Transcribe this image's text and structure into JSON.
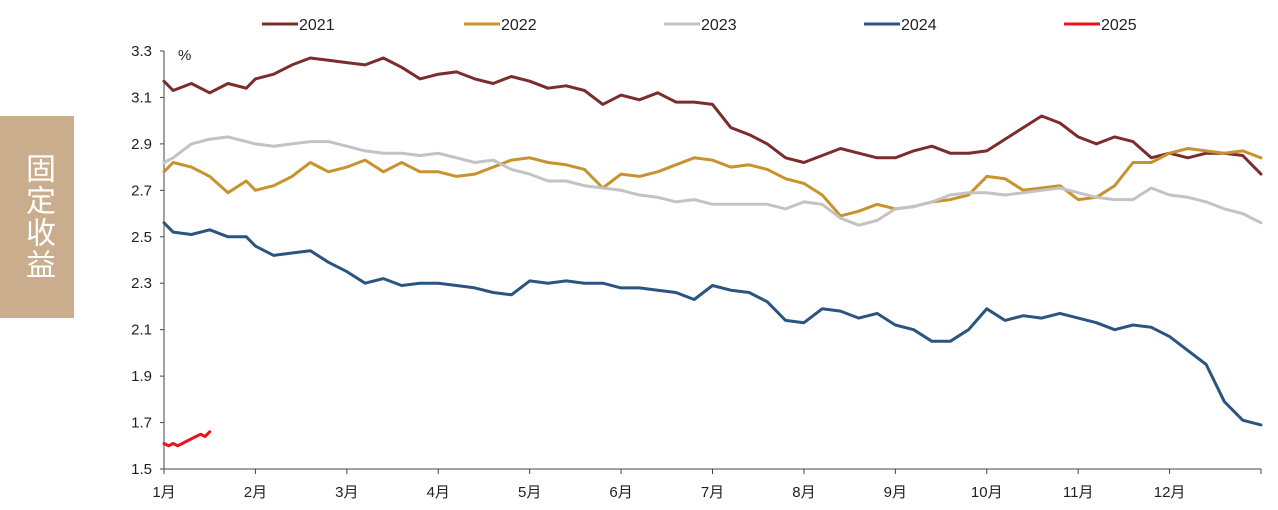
{
  "section_tab": {
    "label": "固定收益"
  },
  "chart_data": {
    "type": "line",
    "unit_label": "%",
    "x_ticks": [
      "1月",
      "2月",
      "3月",
      "4月",
      "5月",
      "6月",
      "7月",
      "8月",
      "9月",
      "10月",
      "11月",
      "12月"
    ],
    "y_ticks": [
      "3.3",
      "3.1",
      "2.9",
      "2.7",
      "2.5",
      "2.3",
      "2.1",
      "1.9",
      "1.7",
      "1.5"
    ],
    "ylim": [
      1.5,
      3.3
    ],
    "xlim": [
      1,
      13
    ],
    "legend_position": "top",
    "series": [
      {
        "name": "2021",
        "color": "#7b2c2c",
        "x": [
          1.0,
          1.1,
          1.3,
          1.5,
          1.7,
          1.9,
          2.0,
          2.2,
          2.4,
          2.6,
          2.8,
          3.0,
          3.2,
          3.4,
          3.6,
          3.8,
          4.0,
          4.2,
          4.4,
          4.6,
          4.8,
          5.0,
          5.2,
          5.4,
          5.6,
          5.8,
          6.0,
          6.2,
          6.4,
          6.6,
          6.8,
          7.0,
          7.2,
          7.4,
          7.6,
          7.8,
          8.0,
          8.2,
          8.4,
          8.6,
          8.8,
          9.0,
          9.2,
          9.4,
          9.6,
          9.8,
          10.0,
          10.2,
          10.4,
          10.6,
          10.8,
          11.0,
          11.2,
          11.4,
          11.6,
          11.8,
          12.0,
          12.2,
          12.4,
          12.6,
          12.8,
          13.0
        ],
        "y": [
          3.17,
          3.13,
          3.16,
          3.12,
          3.16,
          3.14,
          3.18,
          3.2,
          3.24,
          3.27,
          3.26,
          3.25,
          3.24,
          3.27,
          3.23,
          3.18,
          3.2,
          3.21,
          3.18,
          3.16,
          3.19,
          3.17,
          3.14,
          3.15,
          3.13,
          3.07,
          3.11,
          3.09,
          3.12,
          3.08,
          3.08,
          3.07,
          2.97,
          2.94,
          2.9,
          2.84,
          2.82,
          2.85,
          2.88,
          2.86,
          2.84,
          2.84,
          2.87,
          2.89,
          2.86,
          2.86,
          2.87,
          2.92,
          2.97,
          3.02,
          2.99,
          2.93,
          2.9,
          2.93,
          2.91,
          2.84,
          2.86,
          2.84,
          2.86,
          2.86,
          2.85,
          2.77
        ]
      },
      {
        "name": "2022",
        "color": "#c8922e",
        "x": [
          1.0,
          1.1,
          1.3,
          1.5,
          1.7,
          1.9,
          2.0,
          2.2,
          2.4,
          2.6,
          2.8,
          3.0,
          3.2,
          3.4,
          3.6,
          3.8,
          4.0,
          4.2,
          4.4,
          4.6,
          4.8,
          5.0,
          5.2,
          5.4,
          5.6,
          5.8,
          6.0,
          6.2,
          6.4,
          6.6,
          6.8,
          7.0,
          7.2,
          7.4,
          7.6,
          7.8,
          8.0,
          8.2,
          8.4,
          8.6,
          8.8,
          9.0,
          9.2,
          9.4,
          9.6,
          9.8,
          10.0,
          10.2,
          10.4,
          10.6,
          10.8,
          11.0,
          11.2,
          11.4,
          11.6,
          11.8,
          12.0,
          12.2,
          12.4,
          12.6,
          12.8,
          13.0
        ],
        "y": [
          2.78,
          2.82,
          2.8,
          2.76,
          2.69,
          2.74,
          2.7,
          2.72,
          2.76,
          2.82,
          2.78,
          2.8,
          2.83,
          2.78,
          2.82,
          2.78,
          2.78,
          2.76,
          2.77,
          2.8,
          2.83,
          2.84,
          2.82,
          2.81,
          2.79,
          2.71,
          2.77,
          2.76,
          2.78,
          2.81,
          2.84,
          2.83,
          2.8,
          2.81,
          2.79,
          2.75,
          2.73,
          2.68,
          2.59,
          2.61,
          2.64,
          2.62,
          2.63,
          2.65,
          2.66,
          2.68,
          2.76,
          2.75,
          2.7,
          2.71,
          2.72,
          2.66,
          2.67,
          2.72,
          2.82,
          2.82,
          2.86,
          2.88,
          2.87,
          2.86,
          2.87,
          2.84
        ]
      },
      {
        "name": "2023",
        "color": "#c3c3c3",
        "x": [
          1.0,
          1.1,
          1.3,
          1.5,
          1.7,
          1.9,
          2.0,
          2.2,
          2.4,
          2.6,
          2.8,
          3.0,
          3.2,
          3.4,
          3.6,
          3.8,
          4.0,
          4.2,
          4.4,
          4.6,
          4.8,
          5.0,
          5.2,
          5.4,
          5.6,
          5.8,
          6.0,
          6.2,
          6.4,
          6.6,
          6.8,
          7.0,
          7.2,
          7.4,
          7.6,
          7.8,
          8.0,
          8.2,
          8.4,
          8.6,
          8.8,
          9.0,
          9.2,
          9.4,
          9.6,
          9.8,
          10.0,
          10.2,
          10.4,
          10.6,
          10.8,
          11.0,
          11.2,
          11.4,
          11.6,
          11.8,
          12.0,
          12.2,
          12.4,
          12.6,
          12.8,
          13.0
        ],
        "y": [
          2.82,
          2.84,
          2.9,
          2.92,
          2.93,
          2.91,
          2.9,
          2.89,
          2.9,
          2.91,
          2.91,
          2.89,
          2.87,
          2.86,
          2.86,
          2.85,
          2.86,
          2.84,
          2.82,
          2.83,
          2.79,
          2.77,
          2.74,
          2.74,
          2.72,
          2.71,
          2.7,
          2.68,
          2.67,
          2.65,
          2.66,
          2.64,
          2.64,
          2.64,
          2.64,
          2.62,
          2.65,
          2.64,
          2.58,
          2.55,
          2.57,
          2.62,
          2.63,
          2.65,
          2.68,
          2.69,
          2.69,
          2.68,
          2.69,
          2.7,
          2.71,
          2.69,
          2.67,
          2.66,
          2.66,
          2.71,
          2.68,
          2.67,
          2.65,
          2.62,
          2.6,
          2.56
        ]
      },
      {
        "name": "2024",
        "color": "#2b5580",
        "x": [
          1.0,
          1.1,
          1.3,
          1.5,
          1.7,
          1.9,
          2.0,
          2.2,
          2.4,
          2.6,
          2.8,
          3.0,
          3.2,
          3.4,
          3.6,
          3.8,
          4.0,
          4.2,
          4.4,
          4.6,
          4.8,
          5.0,
          5.2,
          5.4,
          5.6,
          5.8,
          6.0,
          6.2,
          6.4,
          6.6,
          6.8,
          7.0,
          7.2,
          7.4,
          7.6,
          7.8,
          8.0,
          8.2,
          8.4,
          8.6,
          8.8,
          9.0,
          9.2,
          9.4,
          9.6,
          9.8,
          10.0,
          10.2,
          10.4,
          10.6,
          10.8,
          11.0,
          11.2,
          11.4,
          11.6,
          11.8,
          12.0,
          12.2,
          12.4,
          12.6,
          12.8,
          13.0
        ],
        "y": [
          2.56,
          2.52,
          2.51,
          2.53,
          2.5,
          2.5,
          2.46,
          2.42,
          2.43,
          2.44,
          2.39,
          2.35,
          2.3,
          2.32,
          2.29,
          2.3,
          2.3,
          2.29,
          2.28,
          2.26,
          2.25,
          2.31,
          2.3,
          2.31,
          2.3,
          2.3,
          2.28,
          2.28,
          2.27,
          2.26,
          2.23,
          2.29,
          2.27,
          2.26,
          2.22,
          2.14,
          2.13,
          2.19,
          2.18,
          2.15,
          2.17,
          2.12,
          2.1,
          2.05,
          2.05,
          2.1,
          2.19,
          2.14,
          2.16,
          2.15,
          2.17,
          2.15,
          2.13,
          2.1,
          2.12,
          2.11,
          2.07,
          2.01,
          1.95,
          1.79,
          1.71,
          1.69
        ]
      },
      {
        "name": "2025",
        "color": "#e8131b",
        "x": [
          1.0,
          1.05,
          1.1,
          1.15,
          1.2,
          1.25,
          1.3,
          1.35,
          1.4,
          1.45,
          1.5
        ],
        "y": [
          1.61,
          1.6,
          1.61,
          1.6,
          1.61,
          1.62,
          1.63,
          1.64,
          1.65,
          1.64,
          1.66
        ]
      }
    ]
  }
}
